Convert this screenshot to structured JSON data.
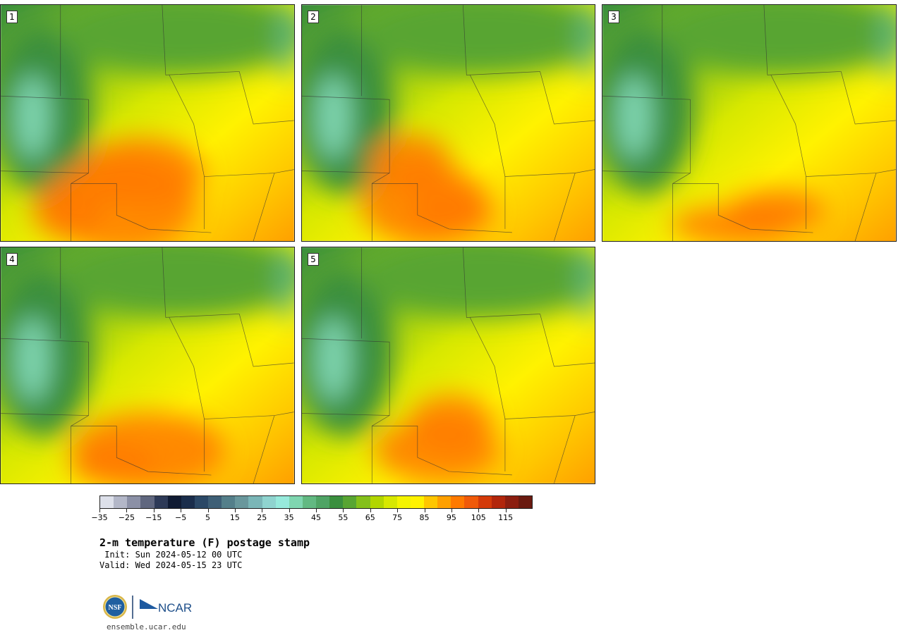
{
  "panels": [
    {
      "label": "1",
      "hot": [
        [
          170,
          290,
          110,
          70
        ],
        [
          200,
          245,
          90,
          50
        ],
        [
          95,
          300,
          50,
          40
        ]
      ]
    },
    {
      "label": "2",
      "hot": [
        [
          600,
          290,
          90,
          60
        ],
        [
          580,
          230,
          60,
          40
        ],
        [
          640,
          300,
          60,
          40
        ]
      ]
    },
    {
      "label": "3",
      "hot": [
        [
          1040,
          320,
          90,
          28
        ],
        [
          1100,
          300,
          70,
          30
        ]
      ]
    },
    {
      "label": "4",
      "hot": [
        [
          210,
          640,
          110,
          55
        ],
        [
          160,
          660,
          60,
          30
        ]
      ]
    },
    {
      "label": "5",
      "hot": [
        [
          620,
          640,
          90,
          45
        ],
        [
          640,
          600,
          60,
          40
        ]
      ]
    }
  ],
  "colorbar": {
    "colors": [
      "#dde0ea",
      "#b3b7c8",
      "#8b90a6",
      "#60677f",
      "#2e3a57",
      "#101b33",
      "#1a2d4b",
      "#2b4866",
      "#3e5f76",
      "#547f8a",
      "#69979c",
      "#7ab6b7",
      "#8fd4cf",
      "#97eadc",
      "#7fd6b0",
      "#62b982",
      "#4fa465",
      "#3a8f3e",
      "#58a532",
      "#84c01a",
      "#b2d600",
      "#d7e800",
      "#f4f400",
      "#fff200",
      "#ffc600",
      "#ffa000",
      "#ff7a00",
      "#f05a0a",
      "#d43a0a",
      "#b2260c",
      "#8c1e10",
      "#6a1a10"
    ],
    "ticks": [
      "−35",
      "−25",
      "−15",
      "−5",
      "5",
      "15",
      "25",
      "35",
      "45",
      "55",
      "65",
      "75",
      "85",
      "95",
      "105",
      "115"
    ]
  },
  "title": "2-m temperature (F) postage stamp",
  "init_line": " Init: Sun 2024-05-12 00 UTC",
  "valid_line": "Valid: Wed 2024-05-15 23 UTC",
  "logos": {
    "nsf": "NSF",
    "ncar": "NCAR"
  },
  "url": "ensemble.ucar.edu"
}
